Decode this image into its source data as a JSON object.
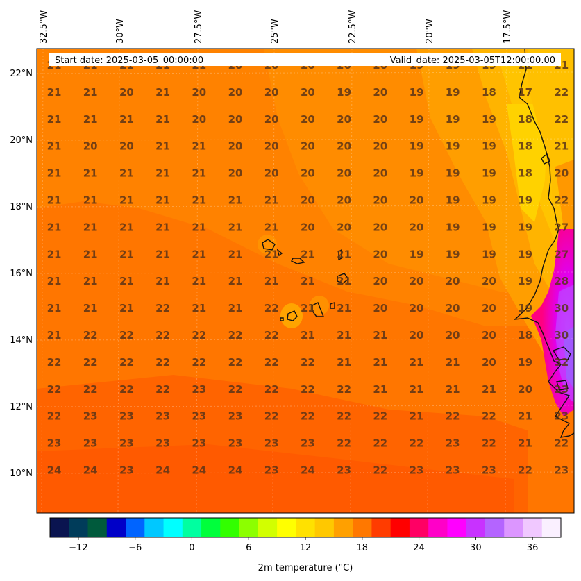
{
  "header": {
    "start_label": "Start date: 2025-03-05_00:00:00",
    "valid_label": "Valid_date: 2025-03-05T12:00:00.00"
  },
  "lon_labels": [
    "32.5°W",
    "30°W",
    "27.5°W",
    "25°W",
    "22.5°W",
    "20°W",
    "17.5°W"
  ],
  "lat_labels": [
    "22°N",
    "20°N",
    "18°N",
    "16°N",
    "14°N",
    "12°N",
    "10°N"
  ],
  "grid_values": [
    [
      "21",
      "21",
      "21",
      "21",
      "21",
      "20",
      "20",
      "20",
      "20",
      "20",
      "19",
      "19",
      "19",
      "21",
      "21"
    ],
    [
      "21",
      "21",
      "20",
      "21",
      "20",
      "20",
      "20",
      "20",
      "19",
      "20",
      "19",
      "19",
      "18",
      "17",
      "22"
    ],
    [
      "21",
      "21",
      "21",
      "21",
      "20",
      "20",
      "20",
      "20",
      "20",
      "20",
      "19",
      "19",
      "19",
      "18",
      "22"
    ],
    [
      "21",
      "20",
      "20",
      "21",
      "21",
      "20",
      "20",
      "20",
      "20",
      "20",
      "19",
      "19",
      "19",
      "18",
      "21"
    ],
    [
      "21",
      "21",
      "21",
      "21",
      "21",
      "20",
      "20",
      "20",
      "20",
      "20",
      "19",
      "19",
      "19",
      "18",
      "20"
    ],
    [
      "21",
      "21",
      "21",
      "21",
      "21",
      "21",
      "21",
      "20",
      "20",
      "20",
      "20",
      "19",
      "19",
      "19",
      "22"
    ],
    [
      "21",
      "21",
      "21",
      "21",
      "21",
      "21",
      "21",
      "20",
      "20",
      "20",
      "20",
      "19",
      "19",
      "19",
      "27"
    ],
    [
      "21",
      "21",
      "21",
      "21",
      "21",
      "21",
      "21",
      "21",
      "21",
      "20",
      "19",
      "19",
      "19",
      "19",
      "27"
    ],
    [
      "21",
      "21",
      "21",
      "21",
      "21",
      "21",
      "21",
      "21",
      "21",
      "20",
      "20",
      "20",
      "20",
      "19",
      "28"
    ],
    [
      "21",
      "21",
      "21",
      "22",
      "21",
      "21",
      "22",
      "21",
      "21",
      "20",
      "20",
      "20",
      "20",
      "19",
      "30"
    ],
    [
      "21",
      "22",
      "22",
      "22",
      "22",
      "22",
      "22",
      "21",
      "21",
      "21",
      "20",
      "20",
      "20",
      "18",
      "30"
    ],
    [
      "22",
      "22",
      "22",
      "22",
      "22",
      "22",
      "22",
      "22",
      "21",
      "21",
      "21",
      "21",
      "20",
      "19",
      "32"
    ],
    [
      "22",
      "22",
      "22",
      "22",
      "23",
      "22",
      "22",
      "22",
      "22",
      "21",
      "21",
      "21",
      "21",
      "20",
      "23"
    ],
    [
      "22",
      "23",
      "23",
      "23",
      "23",
      "23",
      "22",
      "22",
      "22",
      "22",
      "21",
      "22",
      "22",
      "21",
      "23"
    ],
    [
      "23",
      "23",
      "23",
      "23",
      "23",
      "23",
      "23",
      "23",
      "22",
      "22",
      "22",
      "23",
      "22",
      "21",
      "22"
    ],
    [
      "24",
      "24",
      "23",
      "24",
      "24",
      "24",
      "23",
      "24",
      "23",
      "22",
      "23",
      "23",
      "23",
      "22",
      "23"
    ]
  ],
  "colorbar": {
    "label": "2m temperature ($^\\circ$C)",
    "display_label": "2m temperature (°C)",
    "ticks": [
      "−12",
      "−6",
      "0",
      "6",
      "12",
      "18",
      "24",
      "30",
      "36"
    ],
    "range": [
      -15,
      39
    ],
    "colors": [
      "#0a1450",
      "#003c5a",
      "#005a3c",
      "#0000c8",
      "#0064ff",
      "#00c8ff",
      "#00ffff",
      "#00ffa0",
      "#00ff3c",
      "#32ff00",
      "#8cff00",
      "#d2ff00",
      "#ffff00",
      "#ffe100",
      "#ffc800",
      "#ffa000",
      "#ff7800",
      "#ff3c00",
      "#ff0000",
      "#ff0064",
      "#ff00c8",
      "#ff00ff",
      "#c832ff",
      "#b464ff",
      "#dc96ff",
      "#f0c8ff",
      "#faf0ff"
    ]
  },
  "colors": {
    "sea_main": "#ff6e00",
    "sea_light": "#ff8a00",
    "coast_yellow": "#ffc800",
    "land_hot": "#ff00ff",
    "land_purple": "#b450ff"
  }
}
